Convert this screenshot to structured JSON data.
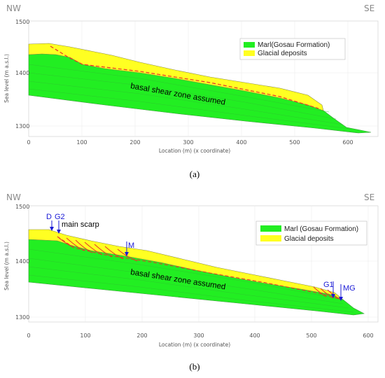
{
  "panel_a": {
    "direction_left": "NW",
    "direction_right": "SE",
    "y_ticks": [
      "1500",
      "1400",
      "1300"
    ],
    "x_ticks": [
      "0",
      "100",
      "200",
      "300",
      "400",
      "500",
      "600"
    ],
    "y_axis_label": "Sea level (m a.s.l.)",
    "x_axis_label": "Location (m) (x coordinate)",
    "legend": [
      "Marl(Gosau Formation)",
      "Glacial deposits"
    ],
    "annotation": "basal shear zone assumed",
    "caption": "(a)"
  },
  "panel_b": {
    "direction_left": "NW",
    "direction_right": "SE",
    "y_ticks": [
      "1500",
      "1400",
      "1300"
    ],
    "x_ticks": [
      "0",
      "100",
      "200",
      "300",
      "400",
      "500",
      "600"
    ],
    "y_axis_label": "Sea level (m a.s.l.)",
    "x_axis_label": "Location (m) (x coordinate)",
    "legend": [
      "Marl (Gosau Formation)",
      "Glacial deposits"
    ],
    "annotation": "basal shear zone assumed",
    "markers": {
      "d": "D",
      "g2": "G2",
      "main_scarp": "main scarp",
      "m": "M",
      "g1": "G1",
      "mg": "MG"
    },
    "caption": "(b)"
  },
  "colors": {
    "marl": "#22ee22",
    "glacial": "#ffff22",
    "marker": "#1a1ad6",
    "fault": "#e8322b"
  }
}
